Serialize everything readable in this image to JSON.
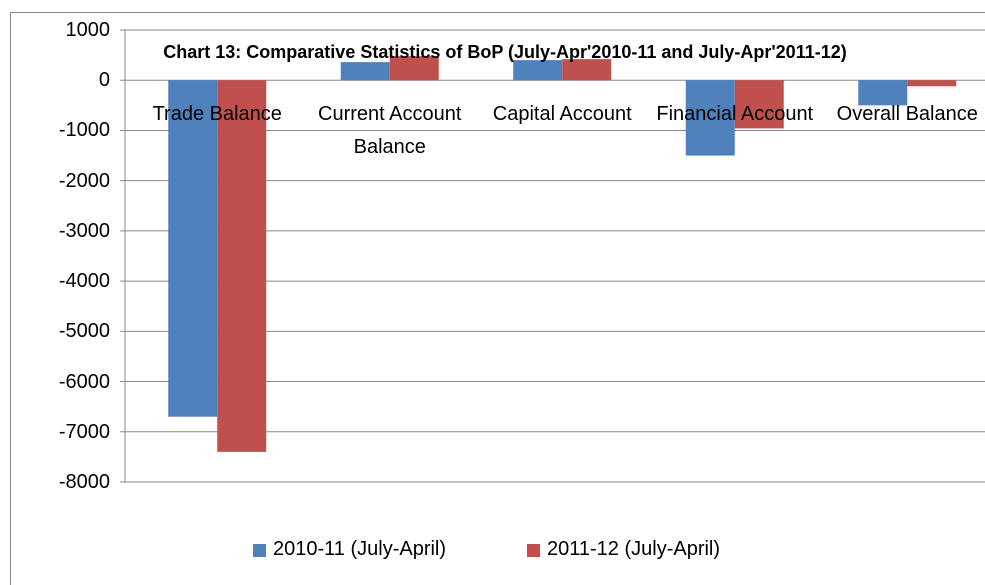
{
  "chart_data": {
    "type": "bar",
    "title": "Chart 13: Comparative Statistics of BoP (July-Apr'2010-11 and July-Apr'2011-12)",
    "categories": [
      "Trade Balance",
      "Current Account Balance",
      "Capital Account",
      "Financial Account",
      "Overall Balance"
    ],
    "series": [
      {
        "name": "2010-11 (July-April)",
        "color": "#4f81bd",
        "values": [
          -6700,
          360,
          400,
          -1500,
          -500
        ]
      },
      {
        "name": "2011-12 (July-April)",
        "color": "#c0504d",
        "values": [
          -7400,
          480,
          420,
          -960,
          -120
        ]
      }
    ],
    "ylim": [
      -8000,
      1000
    ],
    "yticks": [
      -8000,
      -7000,
      -6000,
      -5000,
      -4000,
      -3000,
      -2000,
      -1000,
      0,
      1000
    ],
    "grid": true,
    "legend": "bottom"
  }
}
